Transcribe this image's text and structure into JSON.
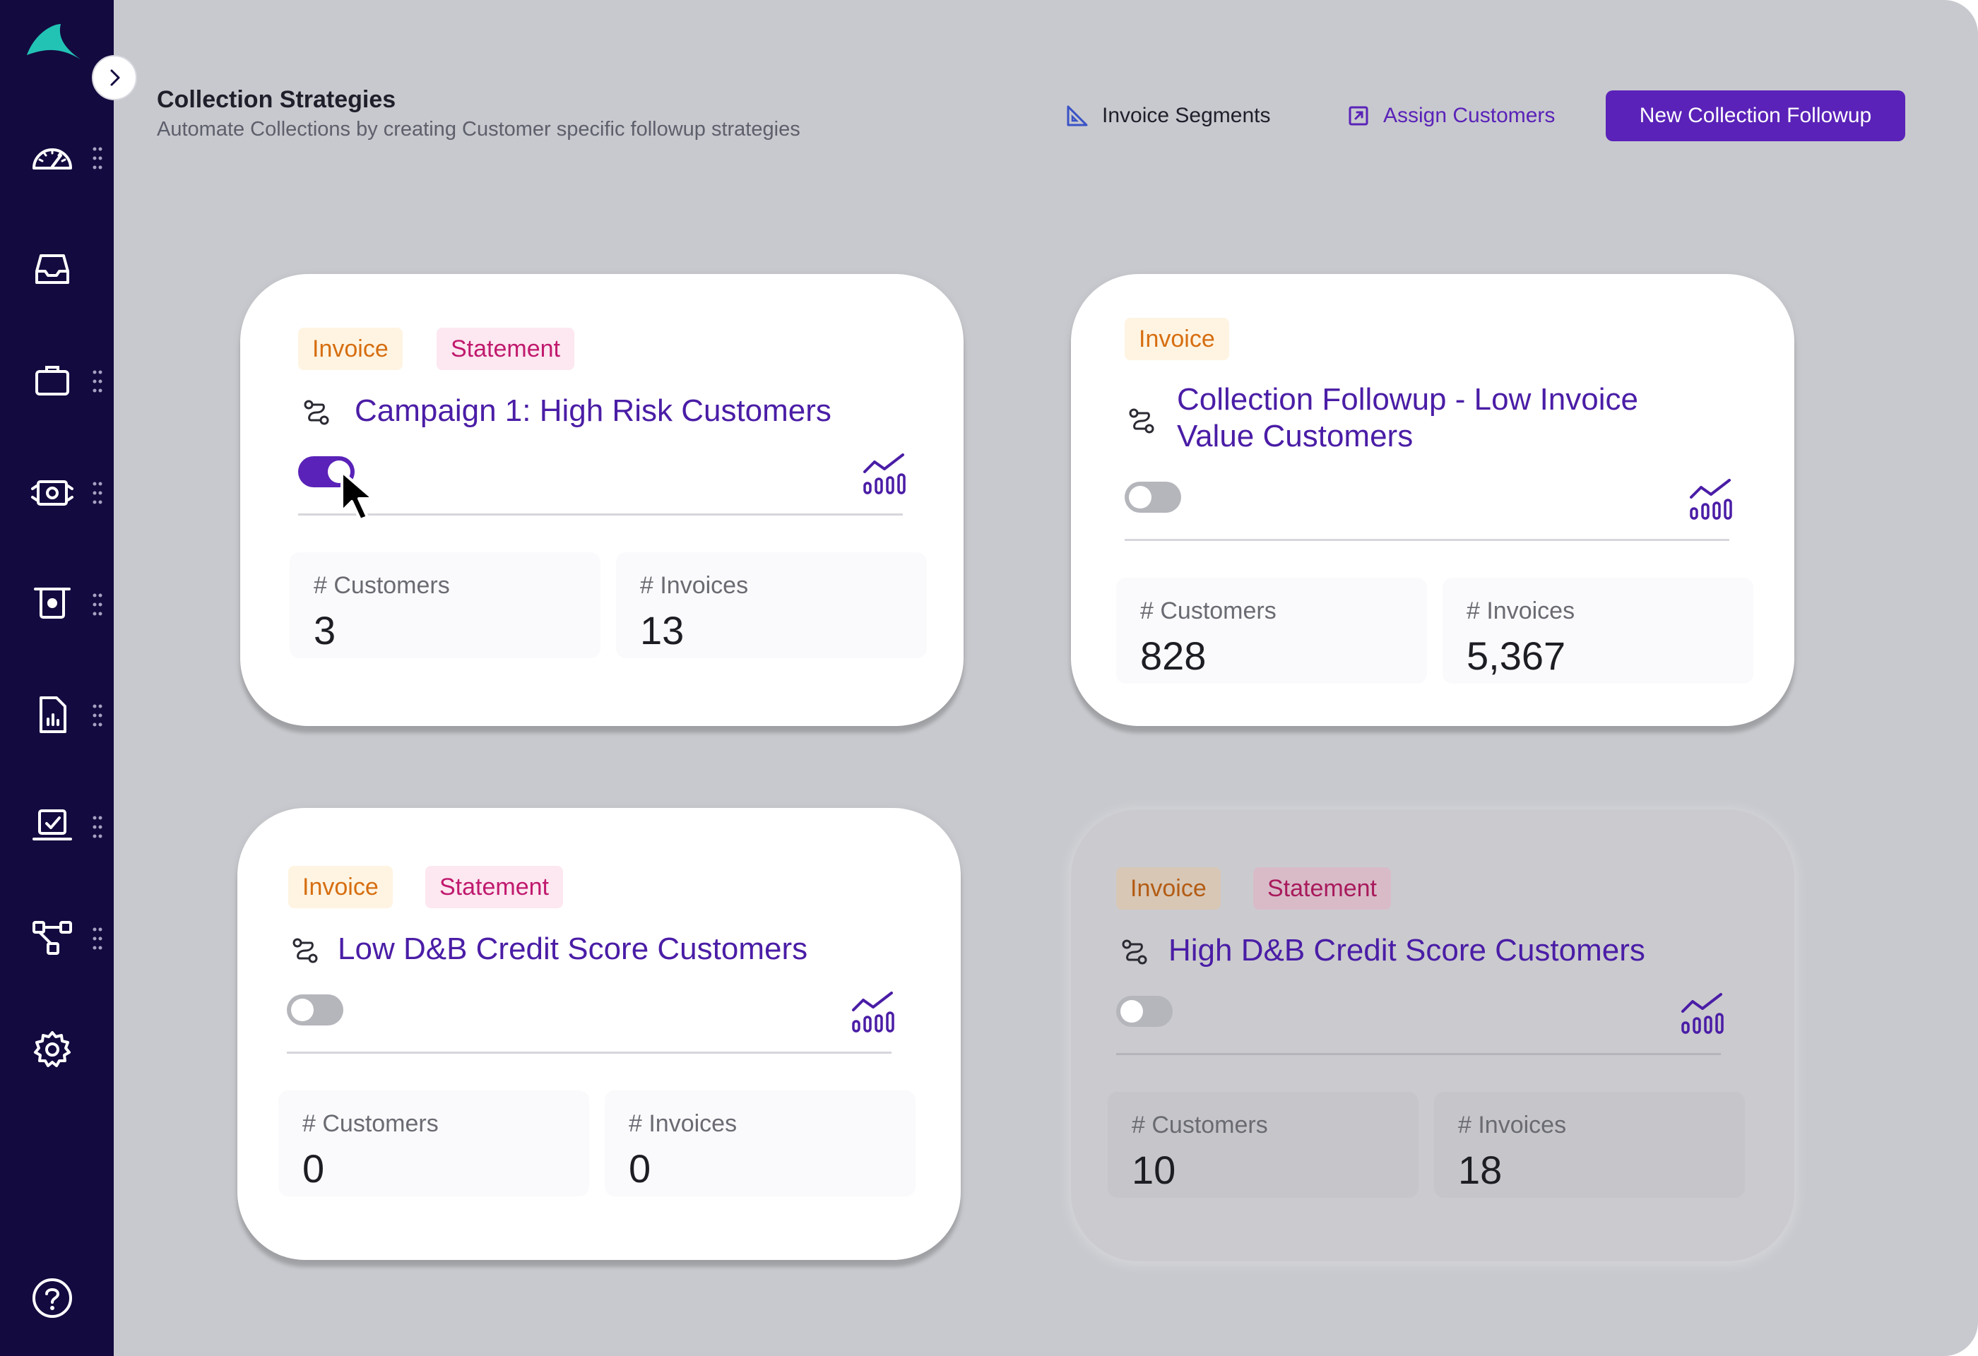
{
  "header": {
    "title": "Collection Strategies",
    "subtitle": "Automate Collections by creating Customer specific followup strategies",
    "invoice_segments_label": "Invoice Segments",
    "assign_customers_label": "Assign Customers",
    "new_followup_label": "New Collection Followup"
  },
  "sidebar": {
    "items": [
      {
        "icon": "dashboard-gauge-icon"
      },
      {
        "icon": "inbox-icon"
      },
      {
        "icon": "briefcase-icon"
      },
      {
        "icon": "payments-icon"
      },
      {
        "icon": "collections-icon"
      },
      {
        "icon": "reports-icon"
      },
      {
        "icon": "tasks-icon"
      },
      {
        "icon": "workflow-icon"
      },
      {
        "icon": "settings-icon"
      },
      {
        "icon": "help-icon"
      }
    ]
  },
  "cards": [
    {
      "tags": [
        "Invoice",
        "Statement"
      ],
      "title": "Campaign 1: High Risk Customers",
      "enabled": true,
      "customers_label": "# Customers",
      "customers": "3",
      "invoices_label": "# Invoices",
      "invoices": "13"
    },
    {
      "tags": [
        "Invoice"
      ],
      "title_line1": "Collection Followup - Low Invoice",
      "title_line2": "Value Customers",
      "enabled": false,
      "customers_label": "# Customers",
      "customers": "828",
      "invoices_label": "# Invoices",
      "invoices": "5,367"
    },
    {
      "tags": [
        "Invoice",
        "Statement"
      ],
      "title": "Low D&B Credit Score Customers",
      "enabled": false,
      "customers_label": "# Customers",
      "customers": "0",
      "invoices_label": "# Invoices",
      "invoices": "0"
    },
    {
      "tags": [
        "Invoice",
        "Statement"
      ],
      "title": "High D&B Credit Score Customers",
      "enabled": false,
      "customers_label": "# Customers",
      "customers": "10",
      "invoices_label": "# Invoices",
      "invoices": "18"
    }
  ],
  "colors": {
    "sidebar": "#130a3f",
    "accent": "#5a22b8",
    "background": "#c8c9ce"
  }
}
